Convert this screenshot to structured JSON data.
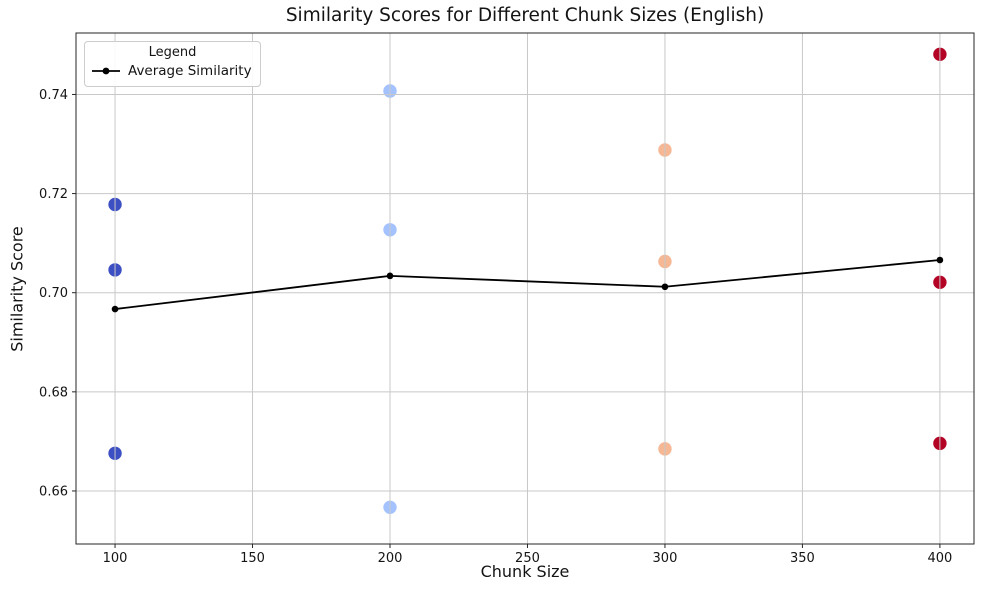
{
  "chart_data": {
    "type": "scatter",
    "title": "Similarity Scores for Different Chunk Sizes (English)",
    "xlabel": "Chunk Size",
    "ylabel": "Similarity Score",
    "x_ticks": [
      100,
      150,
      200,
      250,
      300,
      350,
      400
    ],
    "y_ticks": [
      0.66,
      0.68,
      0.7,
      0.72,
      0.74
    ],
    "xlim": [
      85.8,
      412.4
    ],
    "ylim": [
      0.6493,
      0.7524
    ],
    "grid": true,
    "legend": {
      "position": "upper-left",
      "title": "Legend",
      "entries": [
        {
          "label": "Average Similarity",
          "marker": "line-with-circle",
          "color": "#000000"
        }
      ]
    },
    "colors": {
      "grid": "#c8c8c8",
      "spine": "#262626",
      "text": "#141414"
    },
    "scatter_groups": [
      {
        "chunk_size": 100,
        "color": "#3d50c3",
        "values": [
          0.7178,
          0.7046,
          0.6676
        ]
      },
      {
        "chunk_size": 200,
        "color": "#a3c2fe",
        "values": [
          0.7407,
          0.7127,
          0.6567
        ]
      },
      {
        "chunk_size": 300,
        "color": "#f5b794",
        "values": [
          0.7288,
          0.7063,
          0.6685
        ]
      },
      {
        "chunk_size": 400,
        "color": "#b40426",
        "values": [
          0.7481,
          0.7021,
          0.6696
        ]
      }
    ],
    "average_line": {
      "name": "Average Similarity",
      "color": "#000000",
      "x": [
        100,
        200,
        300,
        400
      ],
      "values": [
        0.6967,
        0.7034,
        0.7012,
        0.7066
      ]
    }
  }
}
